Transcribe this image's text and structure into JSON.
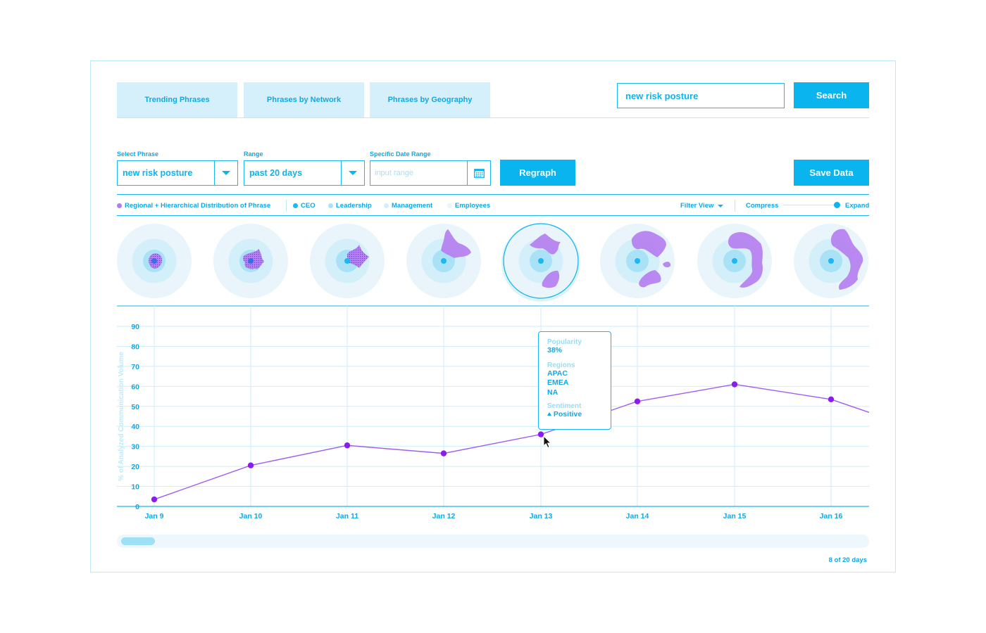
{
  "tabs": [
    "Trending Phrases",
    "Phrases by Network",
    "Phrases by Geography"
  ],
  "search": {
    "value": "new risk posture",
    "button": "Search"
  },
  "controls": {
    "phrase_label": "Select Phrase",
    "phrase_value": "new risk posture",
    "range_label": "Range",
    "range_value": "past 20 days",
    "date_label": "Specific Date Range",
    "date_placeholder": "input range",
    "regraph": "Regraph",
    "save": "Save Data"
  },
  "legend": {
    "distribution": "Regional + Hierarchical Distribution of Phrase",
    "ceo": "CEO",
    "leadership": "Leadership",
    "management": "Management",
    "employees": "Employees",
    "filter_view": "Filter View",
    "compress": "Compress",
    "expand": "Expand",
    "expand_level": 1.0
  },
  "colors": {
    "accent": "#0ab4ee",
    "line": "#a05cf2",
    "point": "#8a1cf0",
    "ceo": "#1cb8ef",
    "leadership": "#a9e2f6",
    "management": "#d3effa",
    "employees": "#e9f5fb",
    "distribution": "#b57cf0"
  },
  "radial_selected_index": 4,
  "chart_data": {
    "type": "line",
    "x": [
      "Jan 9",
      "Jan 10",
      "Jan 11",
      "Jan 12",
      "Jan 13",
      "Jan 14",
      "Jan 15",
      "Jan 16"
    ],
    "series": [
      {
        "values": [
          3.5,
          20.5,
          30.5,
          26.5,
          36,
          52.5,
          61,
          53.5
        ]
      }
    ],
    "trailing_value": 47,
    "yticks": [
      0,
      10,
      20,
      30,
      40,
      50,
      60,
      70,
      80,
      90
    ],
    "ylim": [
      0,
      90
    ],
    "ylabel": "% of Analyzed Communication Volume",
    "xlabel": "",
    "grid": true
  },
  "tooltip": {
    "popularity_label": "Popularity",
    "popularity": "38%",
    "regions_label": "Regions",
    "regions": [
      "APAC",
      "EMEA",
      "NA"
    ],
    "sentiment_label": "Sentiment",
    "sentiment": "Positive"
  },
  "footer": {
    "days": "8 of 20 days"
  }
}
